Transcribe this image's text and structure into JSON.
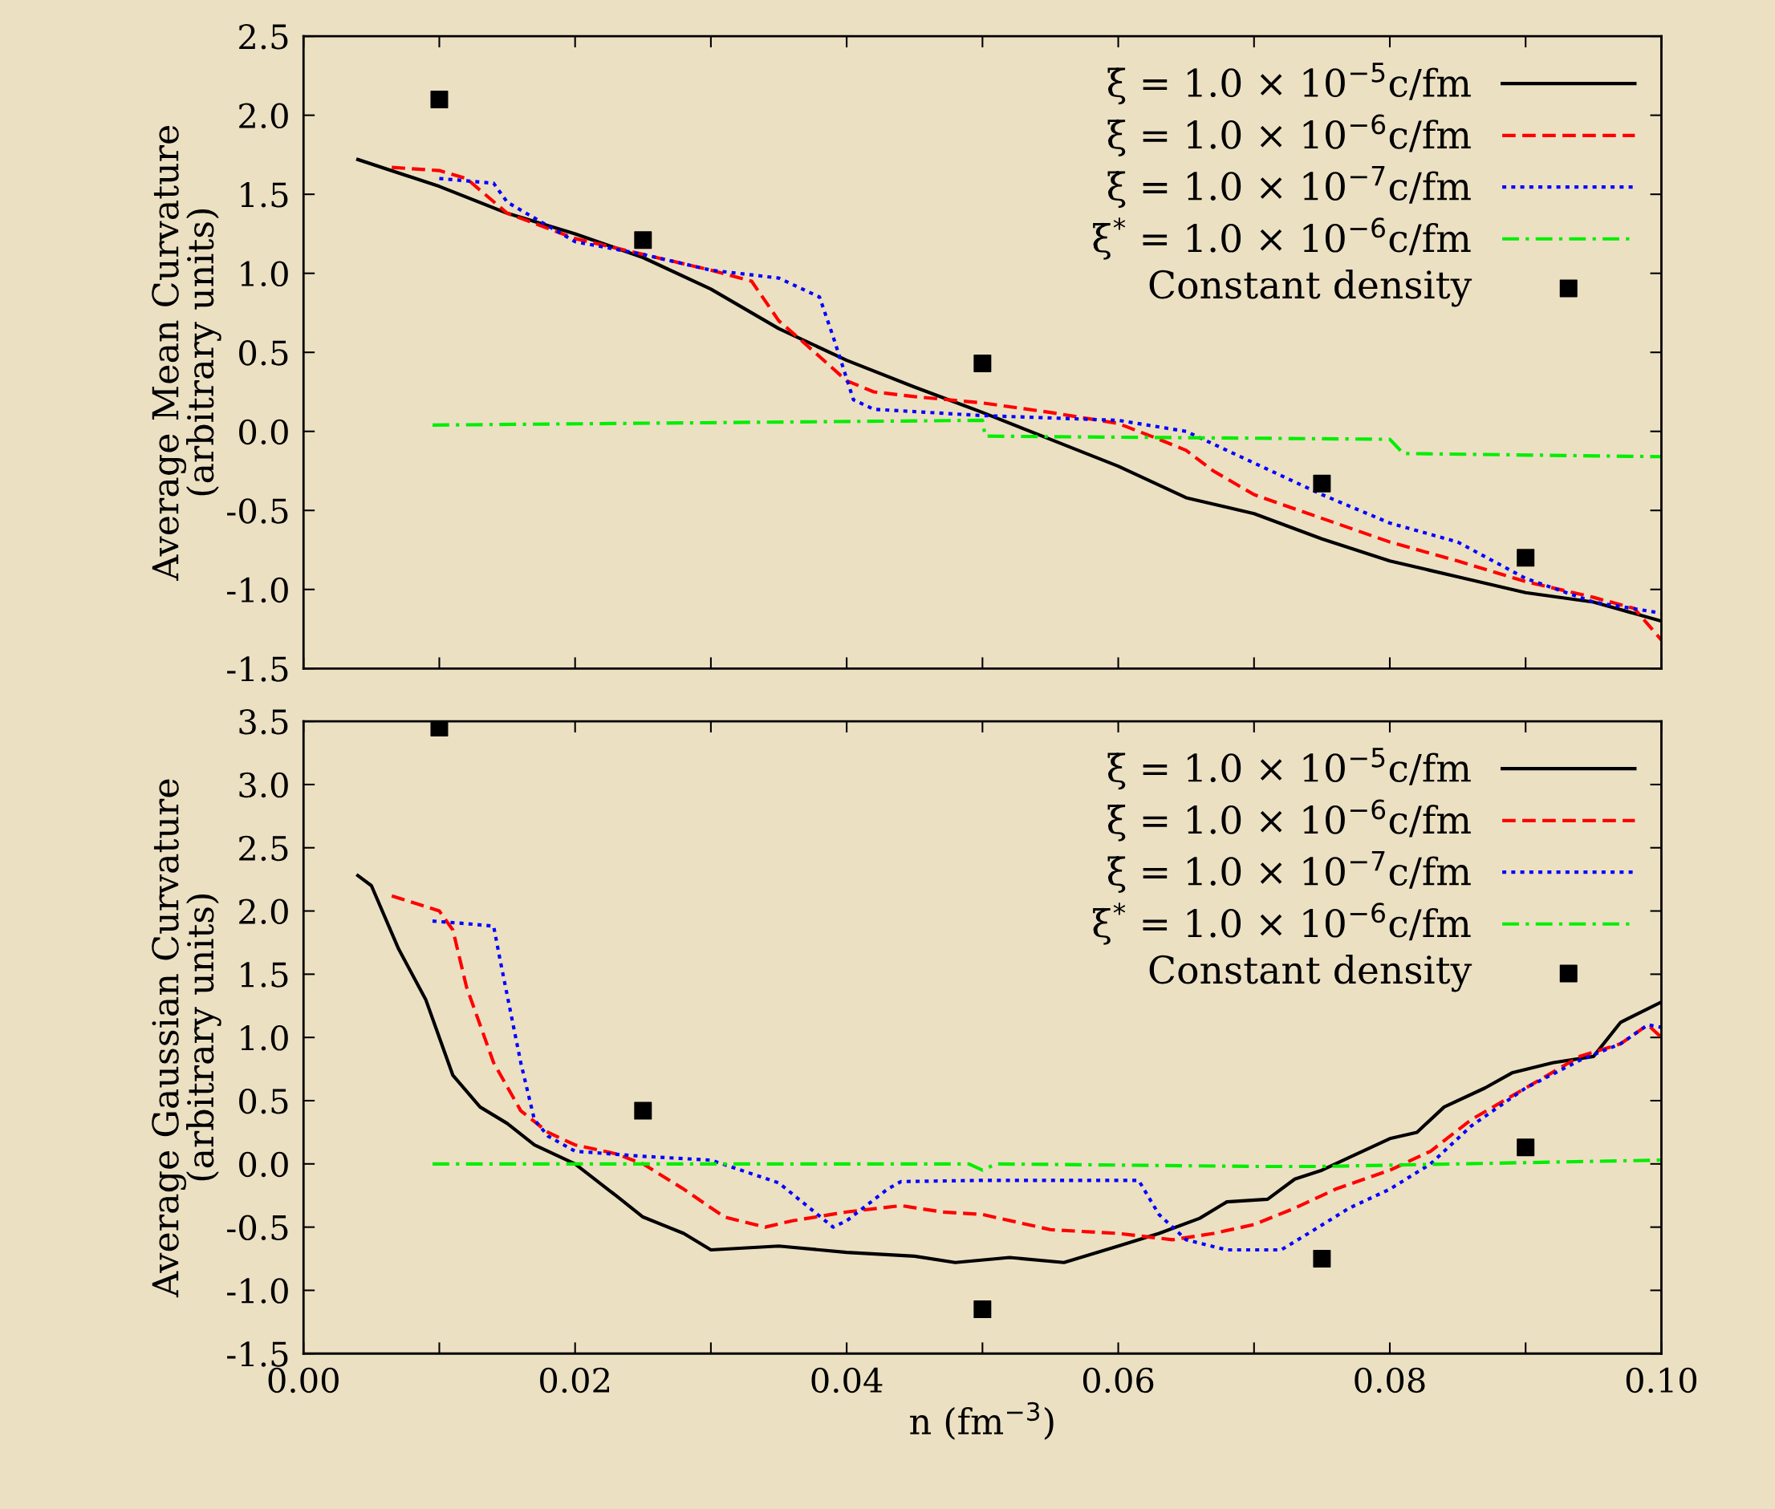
{
  "chart_data": [
    {
      "type": "line",
      "ylabel": "Average Mean Curvature\n(arbitrary units)",
      "xlim": [
        0,
        0.1
      ],
      "ylim": [
        -1.5,
        2.5
      ],
      "xticks": [
        {
          "value": 0,
          "label": null
        },
        {
          "value": 0.01,
          "label": null
        },
        {
          "value": 0.02,
          "label": null
        },
        {
          "value": 0.03,
          "label": null
        },
        {
          "value": 0.04,
          "label": null
        },
        {
          "value": 0.05,
          "label": null
        },
        {
          "value": 0.06,
          "label": null
        },
        {
          "value": 0.07,
          "label": null
        },
        {
          "value": 0.08,
          "label": null
        },
        {
          "value": 0.09,
          "label": null
        },
        {
          "value": 0.1,
          "label": null
        }
      ],
      "yticks": [
        -1.5,
        {
          "value": -1,
          "label": "-1.0"
        },
        -0.5,
        {
          "value": 0,
          "label": "0.0"
        },
        0.5,
        {
          "value": 1,
          "label": "1.0"
        },
        1.5,
        {
          "value": 2,
          "label": "2.0"
        },
        2.5
      ],
      "tick_labels": "y",
      "grid": false,
      "legend": "top right",
      "series": [
        {
          "name": "ξ̇ = 1.0 × 10$^{−5}$c/fm",
          "color": "#000000",
          "line_style": "solid",
          "x": [
            0.004,
            0.01,
            0.015,
            0.02,
            0.025,
            0.03,
            0.035,
            0.04,
            0.045,
            0.05,
            0.055,
            0.06,
            0.065,
            0.07,
            0.075,
            0.08,
            0.085,
            0.09,
            0.095,
            0.1
          ],
          "values": [
            1.72,
            1.55,
            1.38,
            1.25,
            1.1,
            0.9,
            0.65,
            0.45,
            0.28,
            0.12,
            -0.05,
            -0.22,
            -0.42,
            -0.52,
            -0.68,
            -0.82,
            -0.92,
            -1.02,
            -1.08,
            -1.2
          ]
        },
        {
          "name": "ξ̇ = 1.0 × 10$^{−6}$c/fm",
          "color": "#ff0000",
          "line_style": "dashed",
          "x": [
            0.0065,
            0.01,
            0.012,
            0.015,
            0.02,
            0.025,
            0.03,
            0.033,
            0.035,
            0.037,
            0.04,
            0.042,
            0.045,
            0.05,
            0.055,
            0.06,
            0.063,
            0.065,
            0.067,
            0.07,
            0.075,
            0.08,
            0.085,
            0.09,
            0.095,
            0.098,
            0.1
          ],
          "values": [
            1.67,
            1.65,
            1.6,
            1.38,
            1.22,
            1.12,
            1.02,
            0.95,
            0.7,
            0.55,
            0.32,
            0.25,
            0.22,
            0.18,
            0.12,
            0.05,
            -0.05,
            -0.12,
            -0.25,
            -0.4,
            -0.55,
            -0.7,
            -0.82,
            -0.95,
            -1.05,
            -1.12,
            -1.32
          ]
        },
        {
          "name": "ξ̇ = 1.0 × 10$^{−7}$c/fm",
          "color": "#0000ff",
          "line_style": "dotted",
          "x": [
            0.01,
            0.014,
            0.015,
            0.02,
            0.025,
            0.03,
            0.035,
            0.038,
            0.039,
            0.0405,
            0.042,
            0.05,
            0.06,
            0.065,
            0.07,
            0.075,
            0.08,
            0.085,
            0.09,
            0.095,
            0.1
          ],
          "values": [
            1.6,
            1.57,
            1.45,
            1.2,
            1.12,
            1.02,
            0.97,
            0.85,
            0.6,
            0.2,
            0.14,
            0.1,
            0.07,
            0.0,
            -0.2,
            -0.4,
            -0.58,
            -0.7,
            -0.93,
            -1.08,
            -1.15
          ]
        },
        {
          "name": "ξ̇$^{*}$ = 1.0 × 10$^{−6}$c/fm",
          "color": "#00ee00",
          "line_style": "dashdot",
          "x": [
            0.0095,
            0.05,
            0.0502,
            0.08,
            0.081,
            0.1
          ],
          "values": [
            0.04,
            0.07,
            -0.03,
            -0.05,
            -0.14,
            -0.16
          ]
        },
        {
          "name": "Constant density",
          "type": "scatter",
          "marker": "square",
          "color": "#000000",
          "x": [
            0.01,
            0.025,
            0.05,
            0.075,
            0.09
          ],
          "values": [
            2.1,
            1.21,
            0.43,
            -0.33,
            -0.8
          ]
        }
      ]
    },
    {
      "type": "line",
      "ylabel": "Average Gaussian Curvature\n(arbitrary units)",
      "xlabel": "n (fm$^{−3}$)",
      "xlim": [
        0,
        0.1
      ],
      "ylim": [
        -1.5,
        3.5
      ],
      "xticks": [
        {
          "value": 0,
          "label": "0.00"
        },
        {
          "value": 0.01,
          "label": null
        },
        {
          "value": 0.02,
          "label": "0.02"
        },
        {
          "value": 0.03,
          "label": null
        },
        {
          "value": 0.04,
          "label": "0.04"
        },
        {
          "value": 0.05,
          "label": null
        },
        {
          "value": 0.06,
          "label": "0.06"
        },
        {
          "value": 0.07,
          "label": null
        },
        {
          "value": 0.08,
          "label": "0.08"
        },
        {
          "value": 0.09,
          "label": null
        },
        {
          "value": 0.1,
          "label": "0.10"
        }
      ],
      "yticks": [
        -1.5,
        {
          "value": -1,
          "label": "-1.0"
        },
        -0.5,
        {
          "value": 0,
          "label": "0.0"
        },
        0.5,
        {
          "value": 1,
          "label": "1.0"
        },
        1.5,
        {
          "value": 2,
          "label": "2.0"
        },
        2.5,
        {
          "value": 3,
          "label": "3.0"
        },
        3.5
      ],
      "grid": false,
      "legend": "top right",
      "series": [
        {
          "name": "ξ̇ = 1.0 × 10$^{−5}$c/fm",
          "color": "#000000",
          "line_style": "solid",
          "x": [
            0.004,
            0.005,
            0.007,
            0.009,
            0.01,
            0.011,
            0.013,
            0.015,
            0.017,
            0.02,
            0.023,
            0.025,
            0.028,
            0.03,
            0.035,
            0.04,
            0.045,
            0.048,
            0.052,
            0.056,
            0.06,
            0.063,
            0.066,
            0.068,
            0.071,
            0.073,
            0.075,
            0.077,
            0.08,
            0.082,
            0.084,
            0.087,
            0.089,
            0.092,
            0.095,
            0.097,
            0.1
          ],
          "values": [
            2.28,
            2.2,
            1.7,
            1.3,
            1.0,
            0.7,
            0.45,
            0.32,
            0.15,
            0.0,
            -0.25,
            -0.42,
            -0.55,
            -0.68,
            -0.65,
            -0.7,
            -0.73,
            -0.78,
            -0.74,
            -0.78,
            -0.65,
            -0.55,
            -0.43,
            -0.3,
            -0.28,
            -0.12,
            -0.05,
            0.05,
            0.2,
            0.25,
            0.45,
            0.6,
            0.72,
            0.8,
            0.85,
            1.12,
            1.28
          ]
        },
        {
          "name": "ξ̇ = 1.0 × 10$^{−6}$c/fm",
          "color": "#ff0000",
          "line_style": "dashed",
          "x": [
            0.0065,
            0.01,
            0.011,
            0.012,
            0.014,
            0.016,
            0.018,
            0.02,
            0.023,
            0.025,
            0.028,
            0.031,
            0.034,
            0.036,
            0.04,
            0.044,
            0.047,
            0.05,
            0.055,
            0.06,
            0.064,
            0.067,
            0.07,
            0.073,
            0.076,
            0.08,
            0.083,
            0.086,
            0.09,
            0.094,
            0.097,
            0.099,
            0.1
          ],
          "values": [
            2.12,
            2.0,
            1.85,
            1.4,
            0.8,
            0.42,
            0.25,
            0.15,
            0.08,
            0.0,
            -0.2,
            -0.42,
            -0.5,
            -0.45,
            -0.38,
            -0.33,
            -0.38,
            -0.4,
            -0.52,
            -0.55,
            -0.6,
            -0.55,
            -0.48,
            -0.35,
            -0.2,
            -0.05,
            0.1,
            0.35,
            0.6,
            0.85,
            0.95,
            1.1,
            1.0
          ]
        },
        {
          "name": "ξ̇ = 1.0 × 10$^{−7}$c/fm",
          "color": "#0000ff",
          "line_style": "dotted",
          "x": [
            0.0095,
            0.012,
            0.014,
            0.0145,
            0.016,
            0.017,
            0.018,
            0.02,
            0.025,
            0.03,
            0.035,
            0.039,
            0.04,
            0.043,
            0.044,
            0.05,
            0.06,
            0.0615,
            0.063,
            0.065,
            0.068,
            0.072,
            0.074,
            0.077,
            0.08,
            0.083,
            0.086,
            0.09,
            0.094,
            0.097,
            0.099,
            0.1
          ],
          "values": [
            1.92,
            1.9,
            1.88,
            1.6,
            0.8,
            0.35,
            0.22,
            0.1,
            0.06,
            0.03,
            -0.15,
            -0.5,
            -0.45,
            -0.2,
            -0.14,
            -0.13,
            -0.13,
            -0.13,
            -0.4,
            -0.6,
            -0.68,
            -0.68,
            -0.55,
            -0.35,
            -0.2,
            0.0,
            0.3,
            0.6,
            0.82,
            0.95,
            1.1,
            1.08
          ]
        },
        {
          "name": "ξ̇$^{*}$ = 1.0 × 10$^{−6}$c/fm",
          "color": "#00ee00",
          "line_style": "dashdot",
          "x": [
            0.0095,
            0.049,
            0.05,
            0.051,
            0.07,
            0.075,
            0.1
          ],
          "values": [
            0.0,
            0.0,
            -0.05,
            0.0,
            -0.02,
            -0.02,
            0.03
          ]
        },
        {
          "name": "Constant density",
          "type": "scatter",
          "marker": "square",
          "color": "#000000",
          "x": [
            0.01,
            0.025,
            0.05,
            0.075,
            0.09
          ],
          "values": [
            3.45,
            0.42,
            -1.15,
            -0.75,
            0.13
          ]
        }
      ]
    }
  ]
}
